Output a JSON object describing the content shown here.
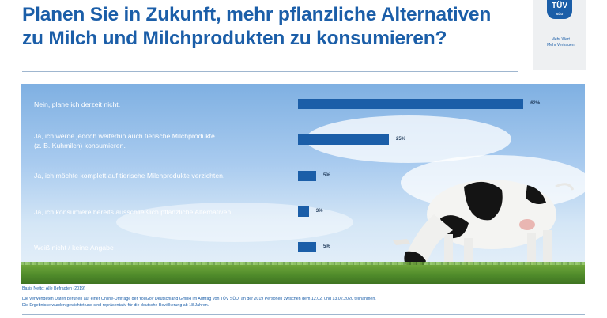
{
  "title": {
    "line1": "Planen Sie in Zukunft, mehr pflanzliche Alternativen",
    "line2": "zu Milch und Milchprodukten zu konsumieren?"
  },
  "logo": {
    "mark": "TÜV",
    "mark_small": "SÜD",
    "claim_line1": "Mehr Wert.",
    "claim_line2": "Mehr Vertrauen."
  },
  "colors": {
    "accent": "#1b5ea8",
    "bar": "#1b5ea8",
    "sky": "#a9cbef",
    "grass": "#4f8a2a"
  },
  "chart_data": {
    "type": "bar",
    "orientation": "horizontal",
    "categories": [
      "Nein, plane ich derzeit nicht.",
      "Ja, ich werde jedoch weiterhin auch tierische Milchprodukte (z. B. Kuhmilch) konsumieren.",
      "Ja, ich möchte komplett auf tierische Milchprodukte verzichten.",
      "Ja, ich konsumiere bereits ausschließlich pflanzliche Alternativen.",
      "Weiß nicht / keine Angabe"
    ],
    "category_lines": [
      [
        "Nein, plane ich derzeit nicht."
      ],
      [
        "Ja, ich werde jedoch weiterhin auch tierische Milchprodukte",
        "(z. B. Kuhmilch) konsumieren."
      ],
      [
        "Ja, ich möchte komplett auf tierische Milchprodukte verzichten."
      ],
      [
        "Ja, ich konsumiere bereits ausschließlich pflanzliche Alternativen."
      ],
      [
        "Weiß nicht / keine Angabe"
      ]
    ],
    "values": [
      62,
      25,
      5,
      3,
      5
    ],
    "value_labels": [
      "62%",
      "25%",
      "5%",
      "3%",
      "5%"
    ],
    "unit": "%",
    "xlim": [
      0,
      100
    ],
    "grid": false,
    "legend": "none"
  },
  "footer": {
    "base": "Basis Netto: Alle Befragten (2019)",
    "method": "Die verwendeten Daten beruhen auf einer Online-Umfrage der YouGov Deutschland GmbH im Auftrag von TÜV SÜD, an der 2019 Personen zwischen dem 12.02. und 13.02.2020 teilnahmen.",
    "weighting": "Die Ergebnisse wurden gewichtet und sind repräsentativ für die deutsche Bevölkerung ab 18 Jahren."
  }
}
